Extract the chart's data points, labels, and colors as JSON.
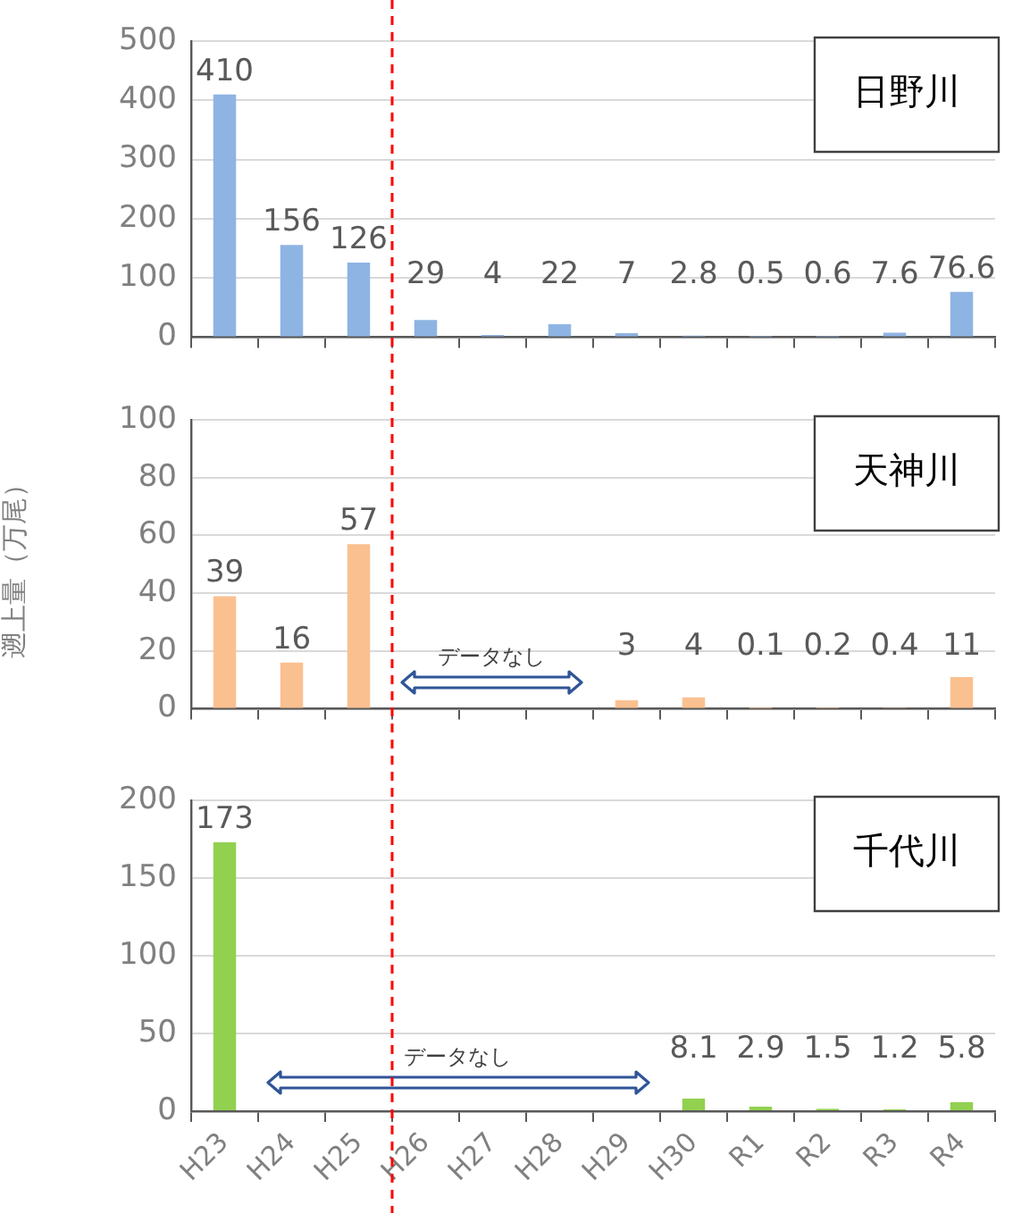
{
  "chart_data": [
    {
      "type": "bar",
      "title": "日野川",
      "categories": [
        null,
        null,
        null,
        null,
        null,
        null,
        null,
        null,
        null,
        null,
        null,
        null
      ],
      "values": [
        410,
        156,
        126,
        29,
        4,
        22,
        7,
        2.8,
        0.5,
        0.6,
        7.6,
        76.6
      ],
      "color": "#8eb4e3",
      "ylim": [
        0,
        500
      ],
      "yticks": [
        0,
        100,
        200,
        300,
        400,
        500
      ],
      "grid": "y",
      "data_labels": true,
      "tick_labels": "y"
    },
    {
      "type": "bar",
      "title": "天神川",
      "ylabel": "遡上量（万尾）",
      "categories": [
        null,
        null,
        null,
        null,
        null,
        null,
        null,
        null,
        null,
        null,
        null,
        null
      ],
      "values": [
        39,
        16,
        57,
        null,
        null,
        null,
        3,
        4,
        0.1,
        0.2,
        0.4,
        11
      ],
      "color": "#fac090",
      "ylim": [
        0,
        100
      ],
      "yticks": [
        0,
        20,
        40,
        60,
        80,
        100
      ],
      "grid": "y",
      "data_labels": true,
      "tick_labels": "y",
      "annotations": [
        "データなし"
      ]
    },
    {
      "type": "bar",
      "title": "千代川",
      "categories": [
        "H23",
        "H24",
        "H25",
        "H26",
        "H27",
        "H28",
        "H29",
        "H30",
        "R1",
        "R2",
        "R3",
        "R4"
      ],
      "values": [
        173,
        null,
        null,
        null,
        null,
        null,
        null,
        8.1,
        2.9,
        1.5,
        1.2,
        5.8
      ],
      "color": "#92d050",
      "ylim": [
        0,
        200
      ],
      "yticks": [
        0,
        50,
        100,
        150,
        200
      ],
      "grid": "y",
      "data_labels": true,
      "annotations": [
        "データなし"
      ]
    }
  ]
}
